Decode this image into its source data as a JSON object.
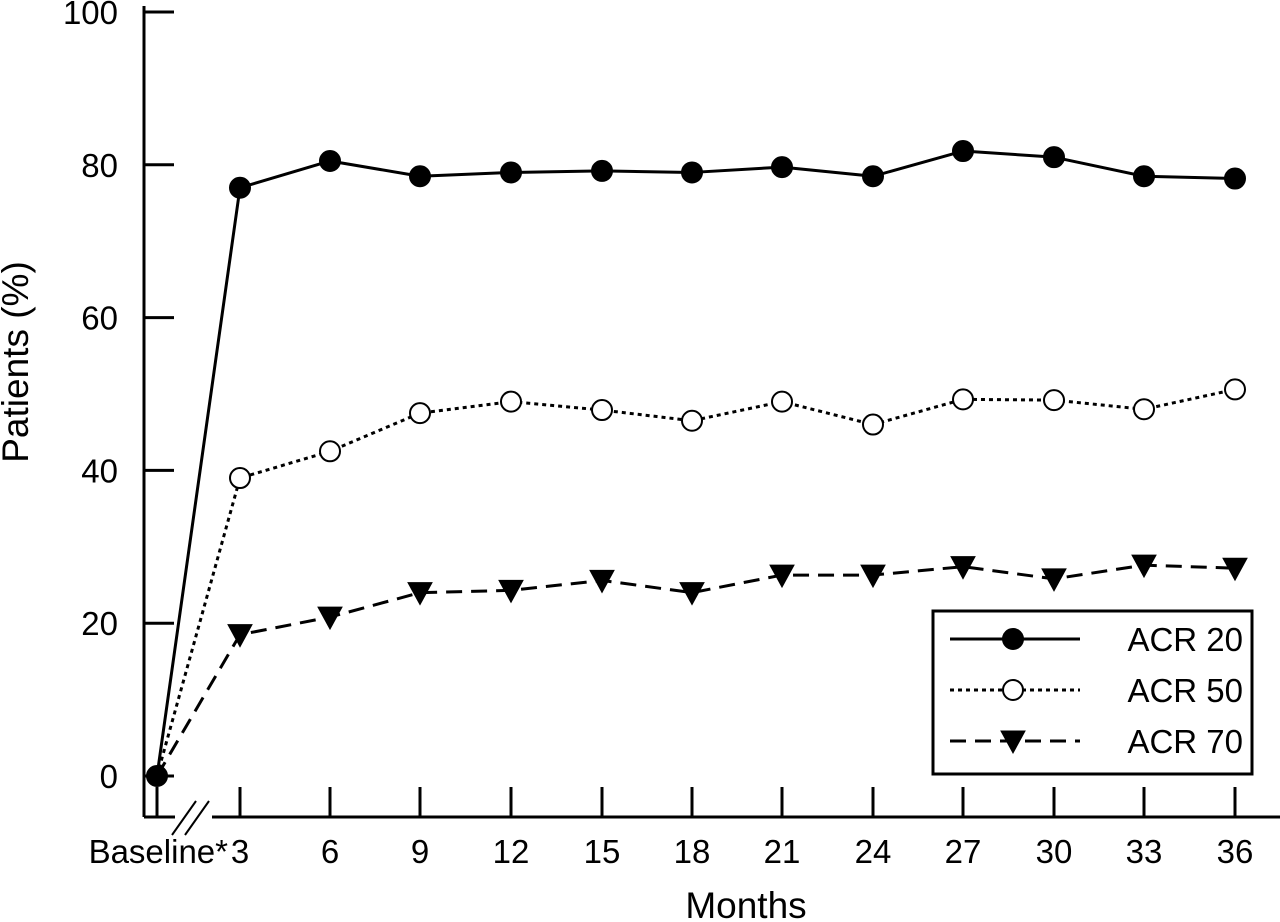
{
  "chart_data": {
    "type": "line",
    "xlabel": "Months",
    "ylabel": "Patients (%)",
    "ylim": [
      0,
      100
    ],
    "yticks": [
      0,
      20,
      40,
      60,
      80,
      100
    ],
    "categories": [
      "Baseline*",
      "3",
      "6",
      "9",
      "12",
      "15",
      "18",
      "21",
      "24",
      "27",
      "30",
      "33",
      "36"
    ],
    "axis_break_after": "Baseline*",
    "grid": false,
    "legend_position": "bottom-right",
    "series": [
      {
        "name": "ACR 20",
        "line_style": "solid",
        "marker": "filled-circle",
        "values": [
          0,
          77,
          80.5,
          78.5,
          79,
          79.2,
          79,
          79.7,
          78.5,
          81.8,
          81,
          78.5,
          78.2
        ]
      },
      {
        "name": "ACR 50",
        "line_style": "dotted",
        "marker": "open-circle",
        "values": [
          0,
          39,
          42.5,
          47.5,
          49,
          47.9,
          46.5,
          49,
          46,
          49.3,
          49.2,
          48,
          50.6
        ]
      },
      {
        "name": "ACR 70",
        "line_style": "dashed",
        "marker": "filled-triangle-down",
        "values": [
          0,
          18.5,
          20.8,
          24,
          24.3,
          25.6,
          24,
          26.3,
          26.3,
          27.4,
          25.8,
          27.6,
          27.2
        ]
      }
    ]
  }
}
